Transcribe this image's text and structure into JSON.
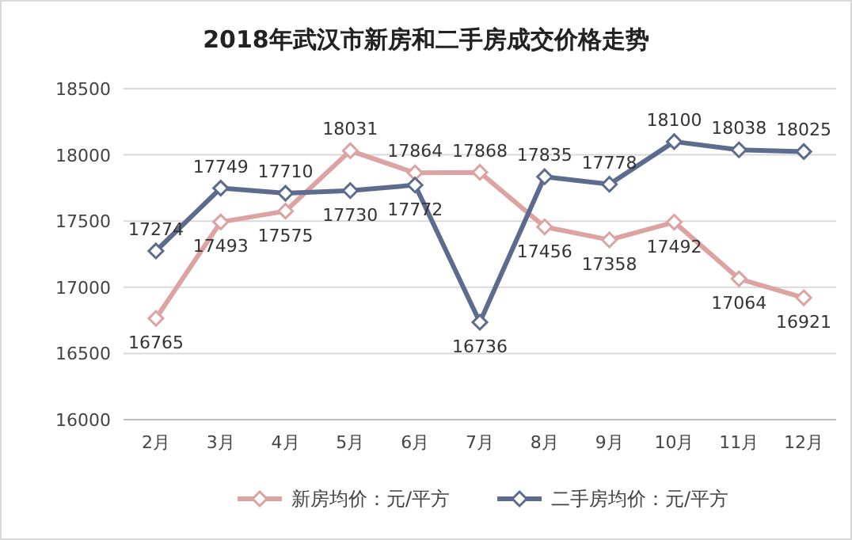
{
  "chart_data": {
    "type": "line",
    "title": "2018年武汉市新房和二手房成交价格走势",
    "categories": [
      "2月",
      "3月",
      "4月",
      "5月",
      "6月",
      "7月",
      "8月",
      "9月",
      "10月",
      "11月",
      "12月"
    ],
    "series": [
      {
        "name": "新房均价：元/平方",
        "color": "#dda3a3",
        "values": [
          16765,
          17493,
          17575,
          18031,
          17864,
          17868,
          17456,
          17358,
          17492,
          17064,
          16921
        ]
      },
      {
        "name": "二手房均价：元/平方",
        "color": "#5d6b8e",
        "values": [
          17274,
          17749,
          17710,
          17730,
          17772,
          16736,
          17835,
          17778,
          18100,
          18038,
          18025
        ]
      }
    ],
    "ylim": [
      16000,
      18500
    ],
    "yticks": [
      16000,
      16500,
      17000,
      17500,
      18000,
      18500
    ],
    "grid": "y",
    "legend": "bottom",
    "marker": "diamond",
    "line_style": "solid",
    "data_labels": true
  }
}
